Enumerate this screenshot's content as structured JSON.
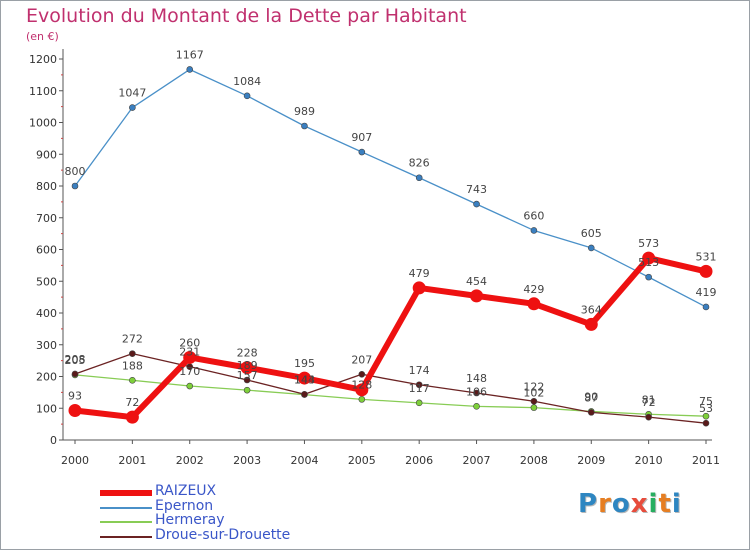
{
  "title": "Evolution du Montant de la Dette par Habitant",
  "unit": "(en €)",
  "logo": {
    "text": "Proxiti",
    "letters": [
      "P",
      "r",
      "o",
      "x",
      "i",
      "t",
      "i"
    ],
    "colors": [
      "#2e86c1",
      "#e67e22",
      "#2e86c1",
      "#e74c3c",
      "#27ae60",
      "#e67e22",
      "#2e86c1"
    ]
  },
  "chart_data": {
    "type": "line",
    "x": [
      "2000",
      "2001",
      "2002",
      "2003",
      "2004",
      "2005",
      "2006",
      "2007",
      "2008",
      "2009",
      "2010",
      "2011"
    ],
    "yticks": [
      0,
      100,
      200,
      300,
      400,
      500,
      600,
      700,
      800,
      900,
      1000,
      1100,
      1200
    ],
    "ylim": [
      0,
      1250
    ],
    "grid": false,
    "legend_position": "bottom-left",
    "series": [
      {
        "name": "Epernon",
        "color": "#4a90c8",
        "width": 1.3,
        "point_color": "#3a7fc0",
        "values": [
          800,
          1047,
          1167,
          1084,
          989,
          907,
          826,
          743,
          660,
          605,
          513,
          419
        ],
        "labels": [
          "800",
          "1047",
          "1167",
          "1084",
          "989",
          "907",
          "826",
          "743",
          "660",
          "605",
          "513",
          "419"
        ]
      },
      {
        "name": "Hermeray",
        "color": "#88cc55",
        "width": 1.3,
        "point_color": "#7ed03a",
        "values": [
          205,
          188,
          170,
          157,
          143,
          128,
          117,
          106,
          102,
          90,
          81,
          75
        ],
        "labels": [
          "205",
          "188",
          "170",
          "157",
          "143",
          "128",
          "117",
          "106",
          "102",
          "90",
          "81",
          "75"
        ]
      },
      {
        "name": "Droue-sur-Drouette",
        "color": "#6b2323",
        "width": 1.3,
        "point_color": "#5a1a1a",
        "values": [
          208,
          272,
          231,
          189,
          144,
          207,
          174,
          148,
          122,
          87,
          72,
          53
        ],
        "labels": [
          "208",
          "272",
          "231",
          "189",
          "144",
          "207",
          "174",
          "148",
          "122",
          "87",
          "72",
          "53"
        ]
      },
      {
        "name": "RAIZEUX",
        "color": "#ee1111",
        "width": 6,
        "point_color": "#ee1111",
        "values": [
          93,
          72,
          260,
          228,
          195,
          158,
          479,
          454,
          429,
          364,
          573,
          531
        ],
        "labels": [
          "93",
          "72",
          "260",
          "228",
          "195",
          "",
          "479",
          "454",
          "429",
          "364",
          "573",
          "531"
        ]
      }
    ]
  },
  "legend": [
    {
      "name": "RAIZEUX",
      "color": "#ee1111",
      "thickness": 6
    },
    {
      "name": "Epernon",
      "color": "#4a90c8",
      "thickness": 2
    },
    {
      "name": "Hermeray",
      "color": "#88cc55",
      "thickness": 2
    },
    {
      "name": "Droue-sur-Drouette",
      "color": "#6b2323",
      "thickness": 2
    }
  ]
}
